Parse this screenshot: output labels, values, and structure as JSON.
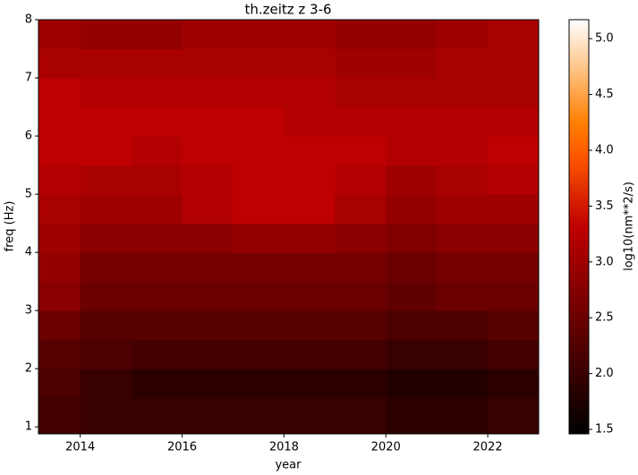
{
  "chart_data": {
    "type": "heatmap",
    "title": "th.zeitz z 3-6",
    "x_label": "year",
    "y_label": "freq (Hz)",
    "colorbar_label": "log10(nm**2/s)",
    "colormap": "gist_heat",
    "xbins": [
      2013.18,
      2014,
      2015,
      2016,
      2017,
      2018,
      2019,
      2020,
      2021,
      2022,
      2023
    ],
    "ybins": [
      0.88,
      1.5,
      2,
      2.5,
      3,
      3.5,
      4,
      4.5,
      5,
      5.5,
      6,
      6.5,
      7,
      7.5,
      8
    ],
    "z": [
      [
        2.1,
        2.0,
        2.0,
        2.0,
        2.0,
        2.0,
        2.0,
        1.9,
        1.9,
        2.0
      ],
      [
        2.2,
        2.0,
        1.9,
        1.9,
        1.9,
        1.9,
        1.9,
        1.8,
        1.8,
        1.9
      ],
      [
        2.3,
        2.2,
        2.1,
        2.1,
        2.1,
        2.1,
        2.1,
        2.0,
        2.0,
        2.1
      ],
      [
        2.5,
        2.3,
        2.3,
        2.3,
        2.3,
        2.3,
        2.3,
        2.2,
        2.2,
        2.3
      ],
      [
        2.8,
        2.5,
        2.5,
        2.5,
        2.5,
        2.5,
        2.5,
        2.4,
        2.5,
        2.5
      ],
      [
        2.9,
        2.6,
        2.6,
        2.6,
        2.6,
        2.6,
        2.6,
        2.5,
        2.6,
        2.6
      ],
      [
        3.0,
        2.8,
        2.8,
        2.8,
        2.9,
        2.9,
        2.8,
        2.7,
        2.8,
        2.8
      ],
      [
        3.1,
        3.0,
        3.0,
        3.2,
        3.3,
        3.3,
        3.1,
        2.9,
        3.0,
        3.0
      ],
      [
        3.2,
        3.1,
        3.1,
        3.2,
        3.3,
        3.3,
        3.2,
        3.0,
        3.1,
        3.2
      ],
      [
        3.3,
        3.3,
        3.2,
        3.3,
        3.3,
        3.3,
        3.3,
        3.2,
        3.2,
        3.3
      ],
      [
        3.3,
        3.3,
        3.3,
        3.3,
        3.3,
        3.2,
        3.2,
        3.2,
        3.2,
        3.2
      ],
      [
        3.3,
        3.2,
        3.2,
        3.2,
        3.2,
        3.2,
        3.1,
        3.1,
        3.1,
        3.1
      ],
      [
        3.1,
        3.1,
        3.1,
        3.1,
        3.1,
        3.1,
        3.0,
        3.0,
        3.1,
        3.1
      ],
      [
        3.0,
        2.9,
        2.9,
        3.0,
        3.0,
        3.0,
        2.9,
        2.9,
        3.0,
        3.1
      ]
    ],
    "xlim": [
      2013.18,
      2023.0
    ],
    "ylim": [
      0.88,
      8
    ],
    "clim": [
      1.46,
      5.17
    ],
    "xticks": [
      2014,
      2016,
      2018,
      2020,
      2022
    ],
    "yticks": [
      1,
      2,
      3,
      4,
      5,
      6,
      7,
      8
    ],
    "cticks": [
      1.5,
      {
        "value": 2,
        "label": "2.0"
      },
      2.5,
      {
        "value": 3,
        "label": "3.0"
      },
      3.5,
      {
        "value": 4,
        "label": "4.0"
      },
      4.5,
      {
        "value": 5,
        "label": "5.0"
      }
    ]
  }
}
